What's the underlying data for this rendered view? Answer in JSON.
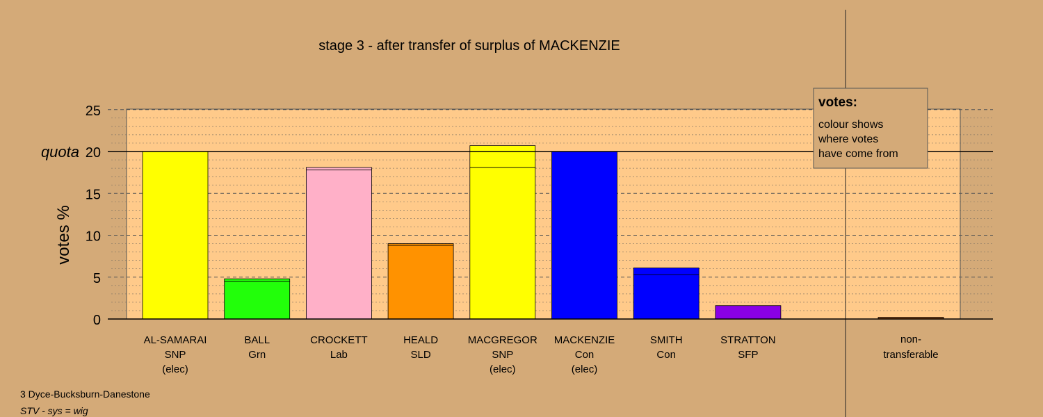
{
  "chart_data": {
    "type": "bar",
    "title": "stage 3 - after transfer of surplus of MACKENZIE",
    "ylabel": "votes %",
    "ylim": [
      0,
      25
    ],
    "yticks": [
      0,
      5,
      10,
      15,
      20,
      25
    ],
    "quota": {
      "label": "quota",
      "value": 20
    },
    "bars": [
      {
        "id": "al-samarai",
        "name": "AL-SAMARAI",
        "party": "SNP",
        "status": "(elec)",
        "color": "#ffff00",
        "segments": [
          20.0
        ]
      },
      {
        "id": "ball",
        "name": "BALL",
        "party": "Grn",
        "status": "",
        "color": "#22ff0a",
        "segments": [
          4.5,
          0.3
        ]
      },
      {
        "id": "crockett",
        "name": "CROCKETT",
        "party": "Lab",
        "status": "",
        "color": "#ffb0c8",
        "segments": [
          17.8,
          0.3
        ]
      },
      {
        "id": "heald",
        "name": "HEALD",
        "party": "SLD",
        "status": "",
        "color": "#ff9200",
        "segments": [
          8.8,
          0.2
        ]
      },
      {
        "id": "macgregor",
        "name": "MACGREGOR",
        "party": "SNP",
        "status": "(elec)",
        "color": "#ffff00",
        "segments": [
          18.1,
          2.6
        ]
      },
      {
        "id": "mackenzie",
        "name": "MACKENZIE",
        "party": "Con",
        "status": "(elec)",
        "color": "#0000ff",
        "segments": [
          20.0
        ]
      },
      {
        "id": "smith",
        "name": "SMITH",
        "party": "Con",
        "status": "",
        "color": "#0000ff",
        "segments": [
          5.3,
          0.8
        ]
      },
      {
        "id": "stratton",
        "name": "STRATTON",
        "party": "SFP",
        "status": "",
        "color": "#8a00e6",
        "segments": [
          1.6
        ]
      }
    ],
    "nontransferable": {
      "label_line1": "non-",
      "label_line2": "transferable",
      "value": 0.2,
      "color": "#8b4513"
    },
    "legend": {
      "title": "votes:",
      "line1": "colour shows",
      "line2": "where votes",
      "line3": "have come from",
      "placement": "top-right"
    }
  },
  "footer": {
    "ward": "3 Dyce-Bucksburn-Danestone",
    "system": "STV - sys = wig"
  },
  "colors": {
    "background": "#d4aa78",
    "plot_background": "#ffca8a"
  }
}
